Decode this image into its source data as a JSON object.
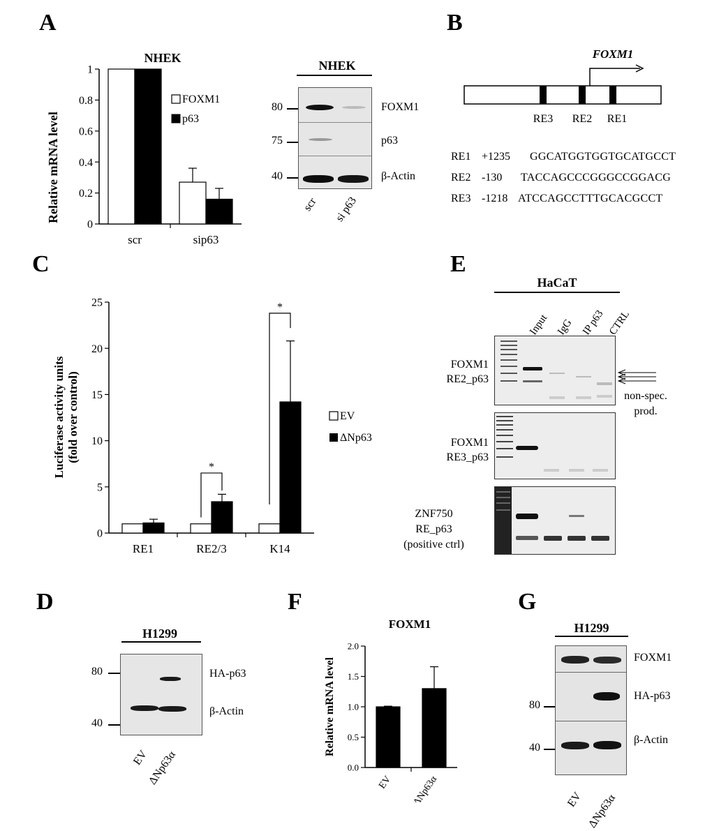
{
  "panels": {
    "A": {
      "letter": "A",
      "chart": {
        "title": "NHEK",
        "ylabel": "Relative mRNA level",
        "yticks": [
          "0",
          "0.2",
          "0.4",
          "0.6",
          "0.8",
          "1"
        ],
        "legend": [
          "FOXM1",
          "p63"
        ]
      },
      "blot": {
        "title": "NHEK",
        "markers": [
          "80",
          "75",
          "40"
        ],
        "bands": [
          "FOXM1",
          "p63",
          "β-Actin"
        ],
        "lanes": [
          "scr",
          "si p63"
        ]
      }
    },
    "B": {
      "letter": "B",
      "gene": "FOXM1",
      "elements": [
        "RE3",
        "RE2",
        "RE1"
      ],
      "sequences": [
        {
          "name": "RE1",
          "pos": "+1235",
          "seq": "GGCATGGTGGTGCATGCCT"
        },
        {
          "name": "RE2",
          "pos": "-130",
          "seq": "TACCAGCCCGGGCCGGACG"
        },
        {
          "name": "RE3",
          "pos": "-1218",
          "seq": "ATCCAGCCTTTGCACGCCT"
        }
      ]
    },
    "C": {
      "letter": "C",
      "chart": {
        "ylabel1": "Luciferase activity units",
        "ylabel2": "(fold over control)",
        "yticks": [
          "0",
          "5",
          "10",
          "15",
          "20",
          "25"
        ],
        "legend": [
          "EV",
          "ΔNp63"
        ],
        "sig": [
          "*",
          "*"
        ]
      }
    },
    "D": {
      "letter": "D",
      "title": "H1299",
      "markers": [
        "80",
        "40"
      ],
      "bands": [
        "HA-p63",
        "β-Actin"
      ],
      "lanes": [
        "EV",
        "ΔNp63α"
      ]
    },
    "E": {
      "letter": "E",
      "title": "HaCaT",
      "lanes": [
        "Input",
        "IgG",
        "IP p63",
        "CTRL"
      ],
      "rows": [
        {
          "line1": "FOXM1",
          "line2": "RE2_p63",
          "line3": ""
        },
        {
          "line1": "FOXM1",
          "line2": "RE3_p63",
          "line3": ""
        },
        {
          "line1": "ZNF750",
          "line2": "RE_p63",
          "line3": "(positive ctrl)"
        }
      ],
      "note1": "non-spec.",
      "note2": "prod."
    },
    "F": {
      "letter": "F",
      "chart": {
        "title": "FOXM1",
        "ylabel": "Relative mRNA level",
        "yticks": [
          "0.0",
          "0.5",
          "1.0",
          "1.5",
          "2.0"
        ]
      }
    },
    "G": {
      "letter": "G",
      "title": "H1299",
      "markers": [
        "80",
        "40"
      ],
      "bands": [
        "FOXM1",
        "HA-p63",
        "β-Actin"
      ],
      "lanes": [
        "EV",
        "ΔNp63α"
      ]
    }
  },
  "chart_data": [
    {
      "id": "A",
      "type": "bar",
      "categories": [
        "scr",
        "sip63"
      ],
      "series": [
        {
          "name": "FOXM1",
          "values": [
            1.0,
            0.27
          ],
          "errors": [
            0,
            0.09
          ],
          "color": "#ffffff"
        },
        {
          "name": "p63",
          "values": [
            1.0,
            0.16
          ],
          "errors": [
            0,
            0.07
          ],
          "color": "#000000"
        }
      ],
      "ylim": [
        0,
        1
      ],
      "title": "NHEK",
      "ylabel": "Relative mRNA level",
      "legend": "right"
    },
    {
      "id": "C",
      "type": "bar",
      "categories": [
        "RE1",
        "RE2/3",
        "K14"
      ],
      "series": [
        {
          "name": "EV",
          "values": [
            1.0,
            1.0,
            1.0
          ],
          "errors": [
            0,
            0,
            0
          ],
          "color": "#ffffff"
        },
        {
          "name": "ΔNp63",
          "values": [
            1.1,
            3.4,
            14.2
          ],
          "errors": [
            0.4,
            0.8,
            6.6
          ],
          "color": "#000000"
        }
      ],
      "ylim": [
        0,
        25
      ],
      "ylabel": "Luciferase activity units (fold over control)",
      "legend": "right"
    },
    {
      "id": "F",
      "type": "bar",
      "categories": [
        "EV",
        "ΔNp63α"
      ],
      "series": [
        {
          "values": [
            1.0,
            1.3
          ],
          "errors": [
            0.01,
            0.36
          ],
          "color": "#000000"
        }
      ],
      "ylim": [
        0,
        2
      ],
      "title": "FOXM1",
      "ylabel": "Relative mRNA level"
    }
  ]
}
